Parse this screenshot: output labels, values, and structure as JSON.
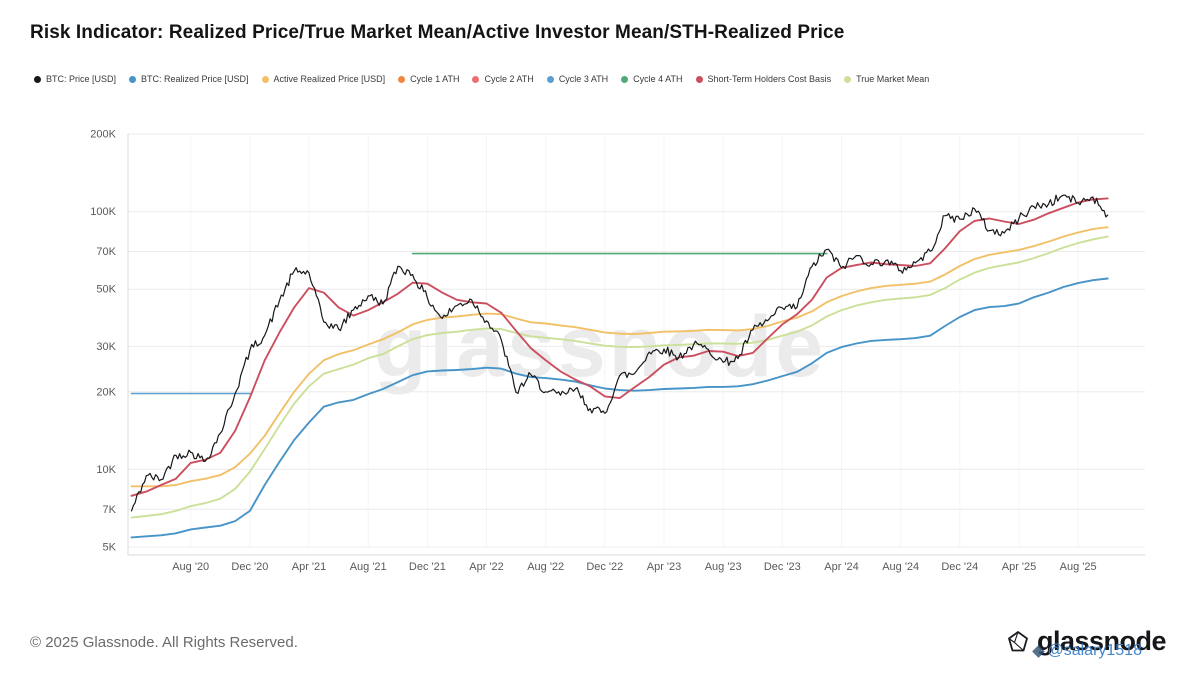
{
  "title": "Risk Indicator: Realized Price/True Market Mean/Active Investor Mean/STH-Realized Price",
  "watermark_text": "glassnode",
  "legend": [
    {
      "label": "BTC: Price [USD]",
      "color": "#17181a"
    },
    {
      "label": "BTC: Realized Price [USD]",
      "color": "#4694c8"
    },
    {
      "label": "Active Realized Price [USD]",
      "color": "#f2c066"
    },
    {
      "label": "Cycle 1 ATH",
      "color": "#f0883f"
    },
    {
      "label": "Cycle 2 ATH",
      "color": "#ee6f6f"
    },
    {
      "label": "Cycle 3 ATH",
      "color": "#5b9ecf"
    },
    {
      "label": "Cycle 4 ATH",
      "color": "#52a877"
    },
    {
      "label": "Short-Term Holders Cost Basis",
      "color": "#cb4f5e"
    },
    {
      "label": "True Market Mean",
      "color": "#cbe098"
    }
  ],
  "footer": {
    "copyright": "© 2025 Glassnode. All Rights Reserved.",
    "brand": "glassnode",
    "overlay_watermark": "@salary1518"
  },
  "chart_data": {
    "type": "line",
    "scale": "log",
    "ylim": [
      5000,
      200000
    ],
    "x_range_decimal_years": [
      2020.23,
      2025.96
    ],
    "grid": true,
    "legend_position": "top",
    "y_ticks": [
      {
        "label": "200K",
        "value": 200000
      },
      {
        "label": "100K",
        "value": 100000
      },
      {
        "label": "70K",
        "value": 70000
      },
      {
        "label": "50K",
        "value": 50000
      },
      {
        "label": "30K",
        "value": 30000
      },
      {
        "label": "20K",
        "value": 20000
      },
      {
        "label": "10K",
        "value": 10000
      },
      {
        "label": "7K",
        "value": 7000
      },
      {
        "label": "5K",
        "value": 5000
      }
    ],
    "x_ticks": [
      {
        "label": "Aug '20",
        "month": "2020-08"
      },
      {
        "label": "Dec '20",
        "month": "2020-12"
      },
      {
        "label": "Apr '21",
        "month": "2021-04"
      },
      {
        "label": "Aug '21",
        "month": "2021-08"
      },
      {
        "label": "Dec '21",
        "month": "2021-12"
      },
      {
        "label": "Apr '22",
        "month": "2022-04"
      },
      {
        "label": "Aug '22",
        "month": "2022-08"
      },
      {
        "label": "Dec '22",
        "month": "2022-12"
      },
      {
        "label": "Apr '23",
        "month": "2023-04"
      },
      {
        "label": "Aug '23",
        "month": "2023-08"
      },
      {
        "label": "Dec '23",
        "month": "2023-12"
      },
      {
        "label": "Apr '24",
        "month": "2024-04"
      },
      {
        "label": "Aug '24",
        "month": "2024-08"
      },
      {
        "label": "Dec '24",
        "month": "2024-12"
      },
      {
        "label": "Apr '25",
        "month": "2025-04"
      },
      {
        "label": "Aug '25",
        "month": "2025-08"
      }
    ],
    "months": [
      "2020-04",
      "2020-05",
      "2020-06",
      "2020-07",
      "2020-08",
      "2020-09",
      "2020-10",
      "2020-11",
      "2020-12",
      "2021-01",
      "2021-02",
      "2021-03",
      "2021-04",
      "2021-05",
      "2021-06",
      "2021-07",
      "2021-08",
      "2021-09",
      "2021-10",
      "2021-11",
      "2021-12",
      "2022-01",
      "2022-02",
      "2022-03",
      "2022-04",
      "2022-05",
      "2022-06",
      "2022-07",
      "2022-08",
      "2022-09",
      "2022-10",
      "2022-11",
      "2022-12",
      "2023-01",
      "2023-02",
      "2023-03",
      "2023-04",
      "2023-05",
      "2023-06",
      "2023-07",
      "2023-08",
      "2023-09",
      "2023-10",
      "2023-11",
      "2023-12",
      "2024-01",
      "2024-02",
      "2024-03",
      "2024-04",
      "2024-05",
      "2024-06",
      "2024-07",
      "2024-08",
      "2024-09",
      "2024-10",
      "2024-11",
      "2024-12",
      "2025-01",
      "2025-02",
      "2025-03",
      "2025-04",
      "2025-05",
      "2025-06",
      "2025-07",
      "2025-08",
      "2025-09",
      "2025-10"
    ],
    "series": [
      {
        "name": "Cycle 3 ATH",
        "color": "#5b9ecf",
        "width": 1.6,
        "x": [
          "2020-04",
          "2020-12"
        ],
        "values": [
          19700,
          19700
        ]
      },
      {
        "name": "Cycle 4 ATH",
        "color": "#52a877",
        "width": 1.6,
        "x": [
          "2021-11",
          "2024-03"
        ],
        "values": [
          68700,
          68700
        ]
      },
      {
        "name": "True Market Mean",
        "color": "#cbe098",
        "width": 1.9,
        "values": [
          6500,
          6600,
          6700,
          6900,
          7200,
          7400,
          7700,
          8400,
          9800,
          12000,
          14800,
          18000,
          21000,
          23500,
          24500,
          25500,
          27000,
          28000,
          30000,
          32000,
          33200,
          33800,
          34200,
          34800,
          35200,
          35000,
          33800,
          32800,
          32400,
          32000,
          31500,
          30800,
          30200,
          29900,
          29800,
          30000,
          30300,
          30400,
          30600,
          30800,
          30800,
          30700,
          31000,
          31800,
          33000,
          34200,
          36200,
          39200,
          41500,
          43200,
          44500,
          45500,
          46000,
          46500,
          47500,
          50500,
          54500,
          58000,
          60500,
          62000,
          63500,
          66000,
          69000,
          72500,
          75500,
          78000,
          80000
        ]
      },
      {
        "name": "Active Realized Price [USD]",
        "color": "#f2c066",
        "width": 1.9,
        "values": [
          8600,
          8600,
          8600,
          8700,
          9000,
          9200,
          9500,
          10200,
          11500,
          13500,
          16500,
          20000,
          23500,
          26500,
          28000,
          29000,
          30500,
          32000,
          34000,
          36500,
          38000,
          38800,
          39200,
          39800,
          40200,
          40000,
          38500,
          37200,
          36800,
          36200,
          35600,
          34800,
          34000,
          33600,
          33500,
          33800,
          34200,
          34300,
          34500,
          34800,
          34700,
          34600,
          35000,
          36000,
          37500,
          38800,
          41000,
          44500,
          47000,
          49000,
          50500,
          51500,
          52000,
          52500,
          53500,
          57000,
          61500,
          65500,
          68000,
          69500,
          71000,
          73500,
          76500,
          80000,
          83000,
          85500,
          87000
        ]
      },
      {
        "name": "BTC: Realized Price [USD]",
        "color": "#4694c8",
        "width": 1.9,
        "values": [
          5450,
          5500,
          5550,
          5650,
          5850,
          5950,
          6050,
          6300,
          6900,
          8700,
          10700,
          13000,
          15200,
          17500,
          18200,
          18600,
          19600,
          20500,
          21800,
          23200,
          24000,
          24200,
          24300,
          24500,
          24800,
          24600,
          23500,
          22800,
          22600,
          22300,
          21900,
          21200,
          20600,
          20300,
          20200,
          20300,
          20500,
          20600,
          20700,
          20900,
          20900,
          21000,
          21400,
          22100,
          23000,
          23900,
          25800,
          28300,
          29800,
          30800,
          31500,
          31800,
          32000,
          32300,
          33000,
          36000,
          39000,
          41500,
          42600,
          43000,
          44000,
          46500,
          48500,
          51000,
          52800,
          54200,
          55000
        ]
      },
      {
        "name": "Short-Term Holders Cost Basis",
        "color": "#cb4f5e",
        "width": 1.9,
        "values": [
          7900,
          8200,
          8700,
          9200,
          10600,
          10900,
          11600,
          14100,
          19000,
          26500,
          34000,
          42500,
          50500,
          48500,
          42500,
          39500,
          41500,
          44500,
          48000,
          53000,
          52500,
          48500,
          45500,
          44500,
          44000,
          40500,
          34500,
          29500,
          26500,
          24000,
          22300,
          21000,
          19200,
          18900,
          20800,
          22800,
          25500,
          27200,
          27600,
          28800,
          28600,
          27500,
          28300,
          32200,
          36500,
          40000,
          45500,
          55500,
          60500,
          62000,
          63500,
          62500,
          62000,
          61500,
          63000,
          72000,
          84000,
          92000,
          94000,
          91500,
          89500,
          93000,
          98500,
          103500,
          108500,
          111500,
          112500
        ]
      },
      {
        "name": "BTC: Price [USD]",
        "color": "#17181a",
        "width": 1.2,
        "jitter": true,
        "values": [
          6900,
          9450,
          9140,
          11350,
          11650,
          10780,
          13800,
          19700,
          29000,
          33100,
          45200,
          58800,
          57800,
          37300,
          35000,
          41500,
          47100,
          43800,
          61300,
          57000,
          46200,
          38500,
          43200,
          45500,
          37700,
          31800,
          19900,
          23300,
          20000,
          19400,
          20500,
          17200,
          16500,
          23100,
          23500,
          28500,
          29300,
          27200,
          30500,
          29200,
          26000,
          26900,
          34700,
          37700,
          42300,
          42600,
          61200,
          71300,
          60600,
          67500,
          62700,
          64600,
          59100,
          63300,
          70200,
          96400,
          93400,
          102400,
          84400,
          82500,
          94200,
          104600,
          107100,
          115800,
          108200,
          114000,
          97000
        ]
      }
    ]
  }
}
